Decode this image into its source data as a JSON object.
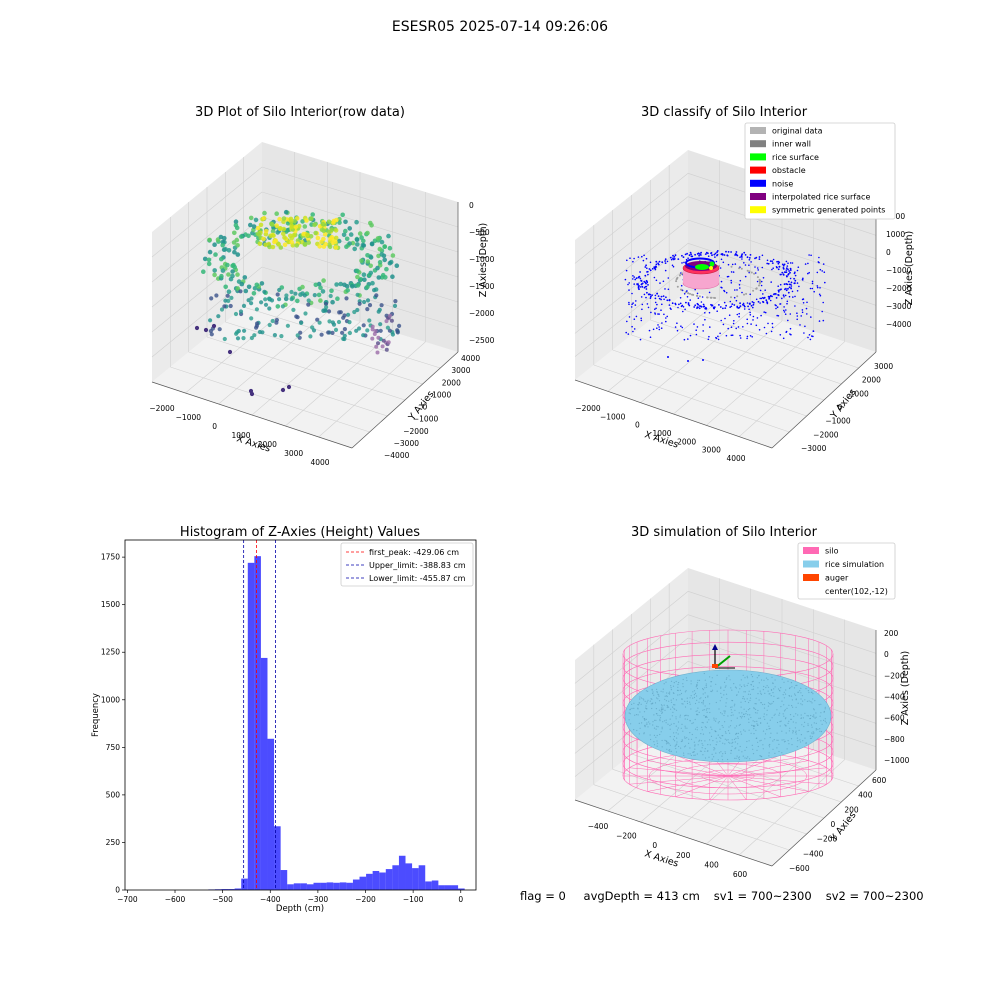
{
  "figure": {
    "suptitle": "ESESR05 2025-07-14 09:26:06"
  },
  "status": {
    "flag": "flag = 0",
    "avg_depth": "avgDepth = 413 cm",
    "sv1": "sv1 = 700~2300",
    "sv2": "sv2 = 700~2300"
  },
  "colors": {
    "hist_bar": "#0000ff",
    "first_peak": "#ff0000",
    "limits": "#0000aa",
    "original_data": "#b3b3b3",
    "inner_wall": "#808080",
    "rice_surface": "#00ff00",
    "obstacle": "#ff0000",
    "noise": "#0000ff",
    "interpolated_rice_surface": "#800080",
    "symmetric_generated_points": "#ffff00",
    "silo": "#ff69b4",
    "rice_simulation": "#87ceeb",
    "auger": "#ff4500"
  },
  "chart_data": [
    {
      "type": "scatter",
      "title": "3D Plot of Silo Interior(row data)",
      "xlabel": "X Axies",
      "ylabel": "Y Axies",
      "zlabel": "Z Axies (Depth)",
      "x_ticks": [
        "−2000",
        "−1000",
        "0",
        "1000",
        "2000",
        "3000",
        "4000"
      ],
      "y_ticks": [
        "−4000",
        "−3000",
        "−2000",
        "−1000",
        "0",
        "1000",
        "2000",
        "3000",
        "4000"
      ],
      "z_ticks": [
        "−2500",
        "−2000",
        "−1500",
        "−1000",
        "−500",
        "0"
      ],
      "colormap": "viridis"
    },
    {
      "type": "scatter",
      "title": "3D classify of Silo Interior",
      "xlabel": "X Axies",
      "ylabel": "Y Axies",
      "zlabel": "Z Axies (Depth)",
      "x_ticks": [
        "−2000",
        "−1000",
        "0",
        "1000",
        "2000",
        "3000",
        "4000"
      ],
      "y_ticks": [
        "−3000",
        "−2000",
        "−1000",
        "0",
        "1000",
        "2000",
        "3000"
      ],
      "z_ticks": [
        "−4000",
        "−3000",
        "−2000",
        "−1000",
        "0",
        "1000",
        "2000"
      ],
      "legend": [
        "original data",
        "inner wall",
        "rice surface",
        "obstacle",
        "noise",
        "interpolated rice surface",
        "symmetric generated points"
      ],
      "legend_position": "top-right"
    },
    {
      "type": "bar",
      "title": "Histogram of Z-Axies (Height) Values",
      "xlabel": "Depth (cm)",
      "ylabel": "Frequency",
      "xlim": [
        -705,
        32
      ],
      "ylim": [
        0,
        1840
      ],
      "x_ticks": [
        "−700",
        "−600",
        "−500",
        "−400",
        "−300",
        "−200",
        "−100",
        "0"
      ],
      "x_tick_values": [
        -700,
        -600,
        -500,
        -400,
        -300,
        -200,
        -100,
        0
      ],
      "y_ticks": [
        "0",
        "250",
        "500",
        "750",
        "1000",
        "1250",
        "1500",
        "1750"
      ],
      "y_tick_values": [
        0,
        250,
        500,
        750,
        1000,
        1250,
        1500,
        1750
      ],
      "bin_width": 13.8,
      "bin_starts": [
        -530,
        -516.2,
        -502.4,
        -488.6,
        -474.8,
        -461,
        -447.2,
        -433.4,
        -419.6,
        -405.8,
        -392,
        -378.2,
        -364.4,
        -350.6,
        -336.8,
        -323,
        -309.2,
        -295.4,
        -281.6,
        -267.8,
        -254,
        -240.2,
        -226.4,
        -212.6,
        -198.8,
        -185,
        -171.2,
        -157.4,
        -143.6,
        -129.8,
        -116,
        -102.2,
        -88.4,
        -74.6,
        -60.8,
        -47,
        -33.2,
        -19.4,
        -5.6
      ],
      "values": [
        3,
        4,
        5,
        5,
        8,
        60,
        1720,
        1755,
        1220,
        795,
        335,
        105,
        30,
        35,
        35,
        30,
        38,
        38,
        40,
        38,
        40,
        38,
        55,
        70,
        85,
        100,
        92,
        110,
        130,
        180,
        140,
        115,
        130,
        45,
        50,
        25,
        25,
        25,
        8
      ],
      "vlines": [
        {
          "name": "first_peak: -429.06 cm",
          "x": -429.06,
          "color": "#ff0000"
        },
        {
          "name": "Upper_limit: -388.83 cm",
          "x": -388.83,
          "color": "#0000aa"
        },
        {
          "name": "Lower_limit: -455.87 cm",
          "x": -455.87,
          "color": "#0000aa"
        }
      ],
      "legend_position": "top-right",
      "grid": false
    },
    {
      "type": "surface",
      "title": "3D simulation of Silo Interior",
      "xlabel": "X Axies",
      "ylabel": "Y Axies",
      "zlabel": "Z Axies (Depth)",
      "x_ticks": [
        "−400",
        "−200",
        "0",
        "200",
        "400",
        "600"
      ],
      "y_ticks": [
        "−600",
        "−400",
        "−200",
        "0",
        "200",
        "400",
        "600"
      ],
      "z_ticks": [
        "−1000",
        "−800",
        "−600",
        "−400",
        "−200",
        "0",
        "200"
      ],
      "legend": [
        "silo",
        "rice simulation",
        "auger",
        "center(102,-12)"
      ],
      "legend_position": "top-right"
    }
  ]
}
